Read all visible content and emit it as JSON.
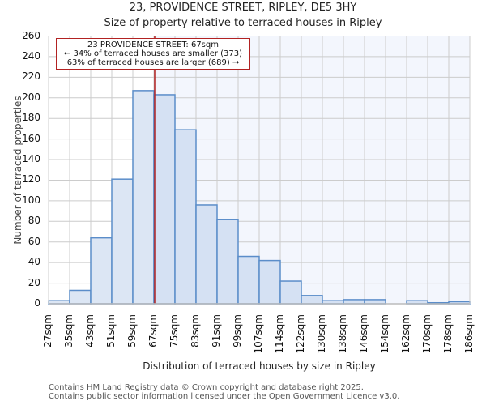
{
  "header": {
    "title": "23, PROVIDENCE STREET, RIPLEY, DE5 3HY",
    "subtitle": "Size of property relative to terraced houses in Ripley"
  },
  "annotation": {
    "line1": "23 PROVIDENCE STREET: 67sqm",
    "line2": "← 34% of terraced houses are smaller (373)",
    "line3": "63% of terraced houses are larger (689) →"
  },
  "axes": {
    "ylabel": "Number of terraced properties",
    "xlabel": "Distribution of terraced houses by size in Ripley"
  },
  "footer": {
    "line1": "Contains HM Land Registry data © Crown copyright and database right 2025.",
    "line2": "Contains public sector information licensed under the Open Government Licence v3.0."
  },
  "colors": {
    "bar_fill_left": "#dce6f4",
    "bar_fill_right": "#d5e1f3",
    "bar_edge": "#5b8dc9",
    "highlight_bg": "#f3f6fd",
    "marker_line": "#b22222",
    "grid": "#cccccc"
  },
  "chart_data": {
    "type": "bar",
    "title": "23, PROVIDENCE STREET, RIPLEY, DE5 3HY",
    "subtitle": "Size of property relative to terraced houses in Ripley",
    "xlabel": "Distribution of terraced houses by size in Ripley",
    "ylabel": "Number of terraced properties",
    "categories": [
      "27sqm",
      "35sqm",
      "43sqm",
      "51sqm",
      "59sqm",
      "67sqm",
      "75sqm",
      "83sqm",
      "91sqm",
      "99sqm",
      "107sqm",
      "114sqm",
      "122sqm",
      "130sqm",
      "138sqm",
      "146sqm",
      "154sqm",
      "162sqm",
      "170sqm",
      "178sqm",
      "186sqm"
    ],
    "values": [
      3,
      13,
      64,
      121,
      207,
      203,
      169,
      96,
      82,
      46,
      42,
      22,
      8,
      3,
      4,
      4,
      0,
      3,
      1,
      2
    ],
    "yticks": [
      0,
      20,
      40,
      60,
      80,
      100,
      120,
      140,
      160,
      180,
      200,
      220,
      240,
      260
    ],
    "ylim": [
      0,
      260
    ],
    "grid": true,
    "marker": {
      "value": "67sqm",
      "label": "23 PROVIDENCE STREET: 67sqm"
    },
    "annotations": [
      "23 PROVIDENCE STREET: 67sqm",
      "← 34% of terraced houses are smaller (373)",
      "63% of terraced houses are larger (689) →"
    ]
  }
}
